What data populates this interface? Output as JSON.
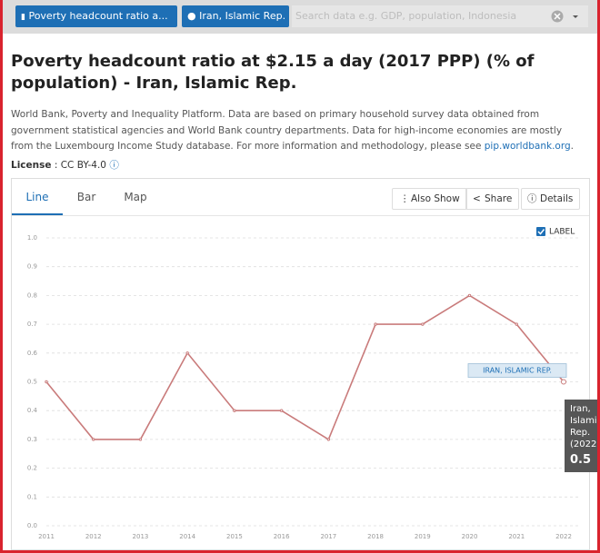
{
  "search": {
    "indicator": "Poverty headcount ratio a...",
    "country": "Iran, Islamic Rep.",
    "placeholder": "Search data e.g. GDP, population, Indonesia"
  },
  "header": {
    "title": "Poverty headcount ratio at $2.15 a day (2017 PPP) (% of population) - Iran, Islamic Rep.",
    "description": "World Bank, Poverty and Inequality Platform. Data are based on primary household survey data obtained from government statistical agencies and World Bank country departments. Data for high-income economies are mostly from the Luxembourg Income Study database. For more information and methodology, please see ",
    "link": "pip.worldbank.org",
    "description_end": ".",
    "license_label": "License",
    "license_value": ": CC BY-4.0"
  },
  "tabs": [
    "Line",
    "Bar",
    "Map"
  ],
  "buttons": [
    "Also Show",
    "Share",
    "Details"
  ],
  "label_toggle": "LABEL",
  "chart_data": {
    "type": "line",
    "categories": [
      "2011",
      "2012",
      "2013",
      "2014",
      "2015",
      "2016",
      "2017",
      "2018",
      "2019",
      "2020",
      "2021",
      "2022"
    ],
    "series": [
      {
        "name": "Iran, Islamic Rep.",
        "color": "#c97b7b",
        "values": [
          0.5,
          0.3,
          0.3,
          0.6,
          0.4,
          0.4,
          0.3,
          0.7,
          0.7,
          0.8,
          0.7,
          0.5
        ]
      }
    ],
    "ylim": [
      0,
      1
    ],
    "yticks": [
      {
        "value": 0,
        "label": "0.0"
      },
      0.1,
      0.2,
      0.3,
      0.4,
      0.5,
      0.6,
      0.7,
      0.8,
      0.9,
      {
        "value": 1,
        "label": "1.0"
      }
    ],
    "grid": true,
    "line_label": "IRAN, ISLAMIC REP.",
    "tooltip_year": "(2022)"
  }
}
